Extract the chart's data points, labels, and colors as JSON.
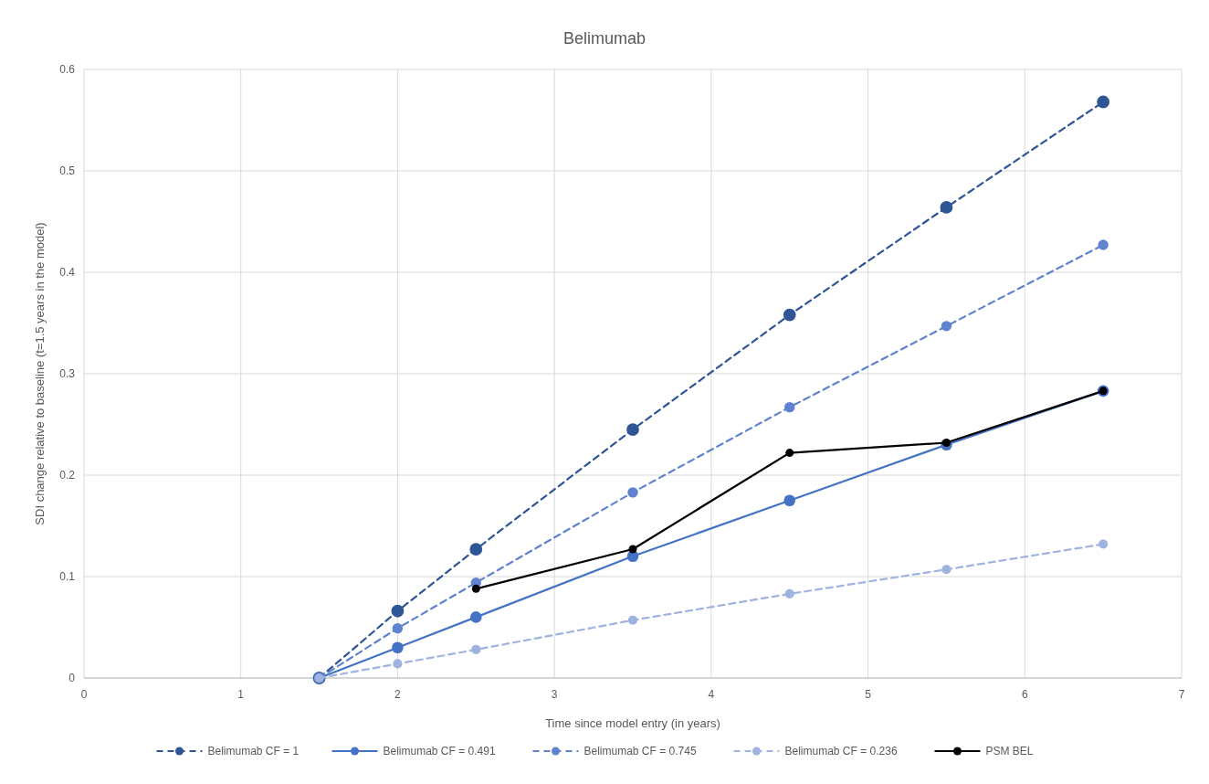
{
  "chart_data": {
    "type": "line",
    "title": "Belimumab",
    "xlabel": "Time since model entry (in years)",
    "ylabel": "SDI change relative to baseline (t=1.5 years in the model)",
    "xlim": [
      0,
      7
    ],
    "xticks": [
      0,
      1,
      2,
      3,
      4,
      5,
      6,
      7
    ],
    "ylim": [
      0,
      0.6
    ],
    "yticks": [
      0,
      0.1,
      0.2,
      0.3,
      0.4,
      0.5,
      0.6
    ],
    "grid": true,
    "legend": "bottom",
    "marker": "circle",
    "series": [
      {
        "name": "Belimumab CF = 1",
        "color": "#2f5597",
        "line_style": "dashed",
        "x": [
          1.5,
          2,
          2.5,
          3.5,
          4.5,
          5.5,
          6.5
        ],
        "values": [
          0,
          0.066,
          0.127,
          0.245,
          0.358,
          0.464,
          0.568
        ]
      },
      {
        "name": "Belimumab CF = 0.491",
        "color": "#4472c4",
        "line_style": "solid",
        "x": [
          1.5,
          2,
          2.5,
          3.5,
          4.5,
          5.5,
          6.5
        ],
        "values": [
          0,
          0.03,
          0.06,
          0.12,
          0.175,
          0.23,
          0.283
        ]
      },
      {
        "name": "Belimumab CF = 0.745",
        "color": "#5f83cf",
        "line_style": "dashed",
        "x": [
          1.5,
          2,
          2.5,
          3.5,
          4.5,
          5.5,
          6.5
        ],
        "values": [
          0,
          0.049,
          0.094,
          0.183,
          0.267,
          0.347,
          0.427
        ]
      },
      {
        "name": "Belimumab CF = 0.236",
        "color": "#9fb3e0",
        "line_style": "dashed",
        "x": [
          1.5,
          2,
          2.5,
          3.5,
          4.5,
          5.5,
          6.5
        ],
        "values": [
          0,
          0.014,
          0.028,
          0.057,
          0.083,
          0.107,
          0.132
        ]
      },
      {
        "name": "PSM BEL",
        "color": "#000000",
        "line_style": "solid",
        "x": [
          2.5,
          3.5,
          4.5,
          5.5,
          6.5
        ],
        "values": [
          0.088,
          0.127,
          0.222,
          0.232,
          0.283
        ]
      }
    ]
  }
}
